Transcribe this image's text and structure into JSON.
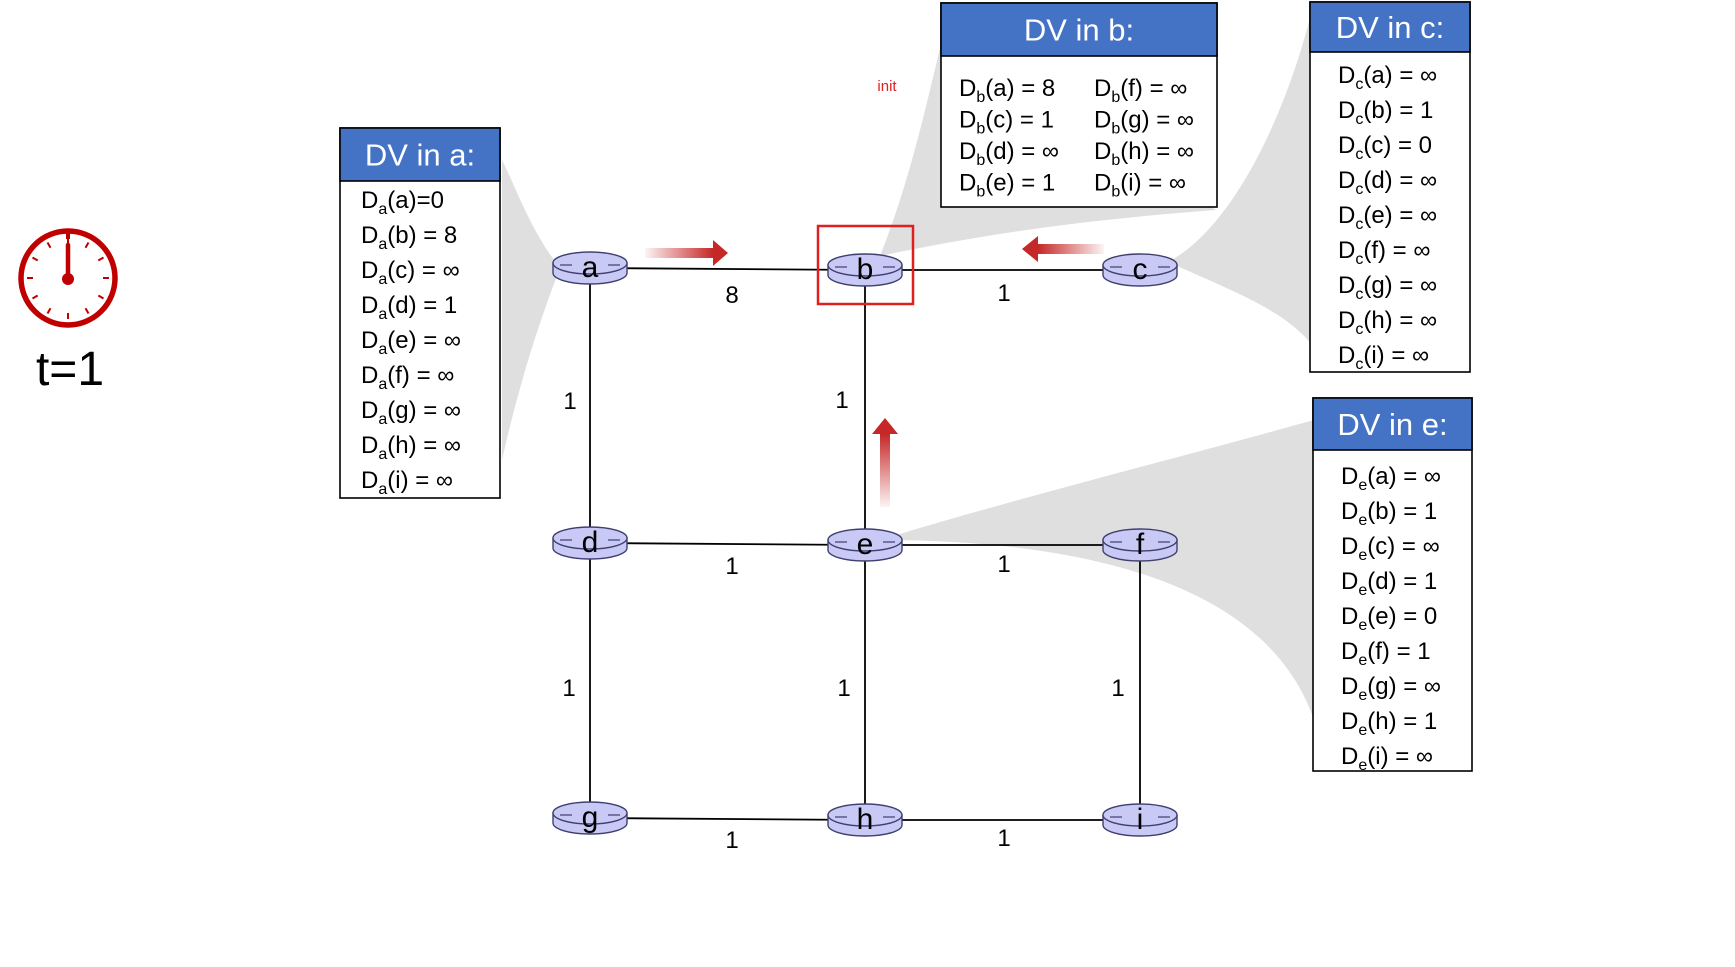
{
  "timer": {
    "label": "t=1",
    "icon": "stopwatch-icon",
    "color": "#c00000"
  },
  "annotation": "init",
  "colors": {
    "router_fill": "#c9c9f5",
    "router_stroke": "#404070",
    "table_header": "#4472c4",
    "highlight": "#e02020",
    "arrow": "#c62828",
    "callout": "#d9d9d9"
  },
  "nodes": [
    {
      "id": "a",
      "label": "a"
    },
    {
      "id": "b",
      "label": "b"
    },
    {
      "id": "c",
      "label": "c"
    },
    {
      "id": "d",
      "label": "d"
    },
    {
      "id": "e",
      "label": "e"
    },
    {
      "id": "f",
      "label": "f"
    },
    {
      "id": "g",
      "label": "g"
    },
    {
      "id": "h",
      "label": "h"
    },
    {
      "id": "i",
      "label": "i"
    }
  ],
  "links": [
    {
      "from": "a",
      "to": "b",
      "cost": "8"
    },
    {
      "from": "b",
      "to": "c",
      "cost": "1"
    },
    {
      "from": "a",
      "to": "d",
      "cost": "1"
    },
    {
      "from": "b",
      "to": "e",
      "cost": "1"
    },
    {
      "from": "d",
      "to": "e",
      "cost": "1"
    },
    {
      "from": "e",
      "to": "f",
      "cost": "1"
    },
    {
      "from": "d",
      "to": "g",
      "cost": "1"
    },
    {
      "from": "e",
      "to": "h",
      "cost": "1"
    },
    {
      "from": "f",
      "to": "i",
      "cost": "1"
    },
    {
      "from": "g",
      "to": "h",
      "cost": "1"
    },
    {
      "from": "h",
      "to": "i",
      "cost": "1"
    }
  ],
  "highlighted_node": "b",
  "messages": [
    {
      "from": "a",
      "to": "b"
    },
    {
      "from": "c",
      "to": "b"
    },
    {
      "from": "e",
      "to": "b"
    }
  ],
  "tables": [
    {
      "node": "a",
      "title": "DV in a:",
      "entries": [
        {
          "s": "a",
          "d": "a",
          "v": "=0"
        },
        {
          "s": "a",
          "d": "b",
          "v": " = 8"
        },
        {
          "s": "a",
          "d": "c",
          "v": " = ∞"
        },
        {
          "s": "a",
          "d": "d",
          "v": " = 1"
        },
        {
          "s": "a",
          "d": "e",
          "v": " = ∞"
        },
        {
          "s": "a",
          "d": "f",
          "v": " = ∞"
        },
        {
          "s": "a",
          "d": "g",
          "v": " = ∞"
        },
        {
          "s": "a",
          "d": "h",
          "v": " = ∞"
        },
        {
          "s": "a",
          "d": "i",
          "v": " = ∞"
        }
      ]
    },
    {
      "node": "b",
      "title": "DV in b:",
      "entries": [
        {
          "s": "b",
          "d": "a",
          "v": " = 8"
        },
        {
          "s": "b",
          "d": "c",
          "v": " = 1"
        },
        {
          "s": "b",
          "d": "d",
          "v": " = ∞"
        },
        {
          "s": "b",
          "d": "e",
          "v": " = 1"
        },
        {
          "s": "b",
          "d": "f",
          "v": " = ∞"
        },
        {
          "s": "b",
          "d": "g",
          "v": " = ∞"
        },
        {
          "s": "b",
          "d": "h",
          "v": " = ∞"
        },
        {
          "s": "b",
          "d": "i",
          "v": " = ∞"
        }
      ]
    },
    {
      "node": "c",
      "title": "DV in c:",
      "entries": [
        {
          "s": "c",
          "d": "a",
          "v": " = ∞"
        },
        {
          "s": "c",
          "d": "b",
          "v": " = 1"
        },
        {
          "s": "c",
          "d": "c",
          "v": " = 0"
        },
        {
          "s": "c",
          "d": "d",
          "v": " = ∞"
        },
        {
          "s": "c",
          "d": "e",
          "v": " = ∞"
        },
        {
          "s": "c",
          "d": "f",
          "v": " = ∞"
        },
        {
          "s": "c",
          "d": "g",
          "v": " = ∞"
        },
        {
          "s": "c",
          "d": "h",
          "v": " = ∞"
        },
        {
          "s": "c",
          "d": "i",
          "v": " = ∞"
        }
      ]
    },
    {
      "node": "e",
      "title": "DV in e:",
      "entries": [
        {
          "s": "e",
          "d": "a",
          "v": " = ∞"
        },
        {
          "s": "e",
          "d": "b",
          "v": " = 1"
        },
        {
          "s": "e",
          "d": "c",
          "v": " = ∞"
        },
        {
          "s": "e",
          "d": "d",
          "v": " = 1"
        },
        {
          "s": "e",
          "d": "e",
          "v": " = 0"
        },
        {
          "s": "e",
          "d": "f",
          "v": " = 1"
        },
        {
          "s": "e",
          "d": "g",
          "v": " = ∞"
        },
        {
          "s": "e",
          "d": "h",
          "v": " = 1"
        },
        {
          "s": "e",
          "d": "i",
          "v": " = ∞"
        }
      ]
    }
  ]
}
